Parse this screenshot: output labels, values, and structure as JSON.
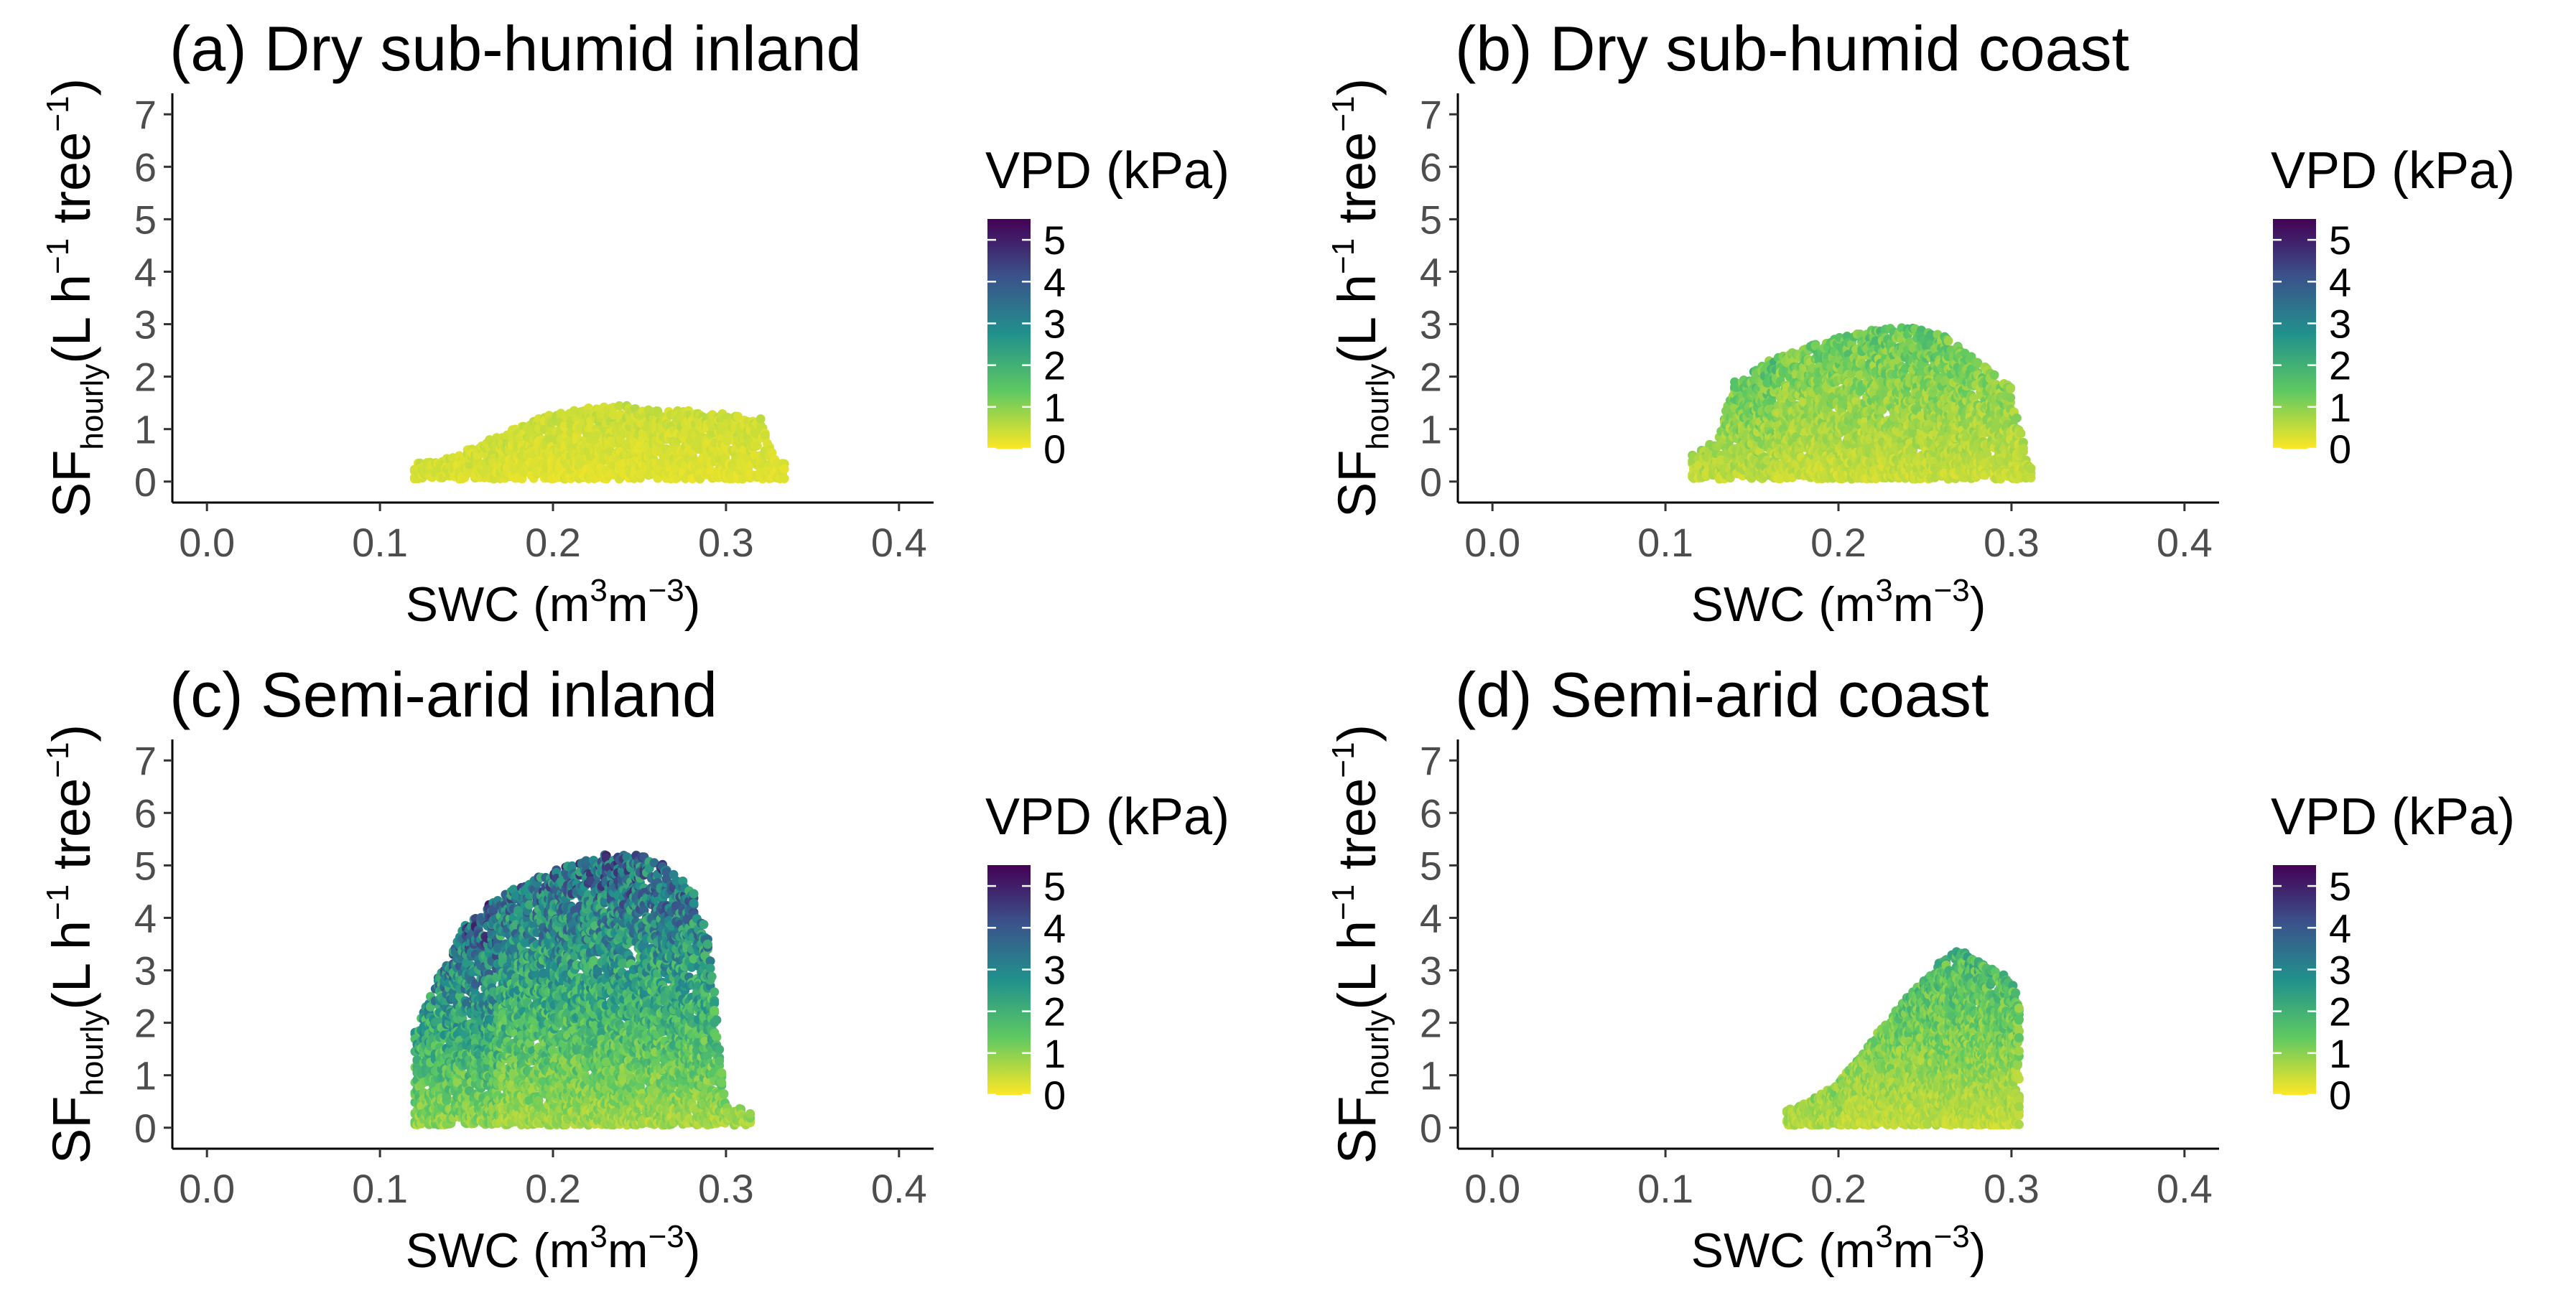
{
  "figure": {
    "colorbar_title": "VPD (kPa)",
    "colorbar_ticks": [
      "0",
      "1",
      "2",
      "3",
      "4",
      "5"
    ],
    "colorbar_stops": [
      "#fde725",
      "#5ec962",
      "#21918c",
      "#3b528b",
      "#440154"
    ],
    "x_label_main": "SWC (m",
    "x_label_sup1": "3",
    "x_label_mid": "m",
    "x_label_sup2": "−3",
    "x_label_end": ")",
    "y_label_main": "SF",
    "y_label_sub": "hourly",
    "y_label_mid": "(L h",
    "y_label_sup1": "−1",
    "y_label_tree": " tree",
    "y_label_sup2": "−1",
    "y_label_end": ")"
  },
  "chart_data": [
    {
      "type": "scatter",
      "title": "(a) Dry sub-humid inland",
      "xlabel": "SWC (m3m-3)",
      "ylabel": "SFhourly(L h-1 tree-1)",
      "color_variable": "VPD (kPa)",
      "color_range": [
        0,
        5.5
      ],
      "xlim": [
        -0.02,
        0.42
      ],
      "ylim": [
        -0.4,
        7.4
      ],
      "x_ticks": [
        0.0,
        0.1,
        0.2,
        0.3,
        0.4
      ],
      "x_tick_labels": [
        "0.0",
        "0.1",
        "0.2",
        "0.3",
        "0.4"
      ],
      "y_ticks": [
        0,
        1,
        2,
        3,
        4,
        5,
        6,
        7
      ],
      "y_tick_labels": [
        "0",
        "1",
        "2",
        "3",
        "4",
        "5",
        "6",
        "7"
      ],
      "envelope": [
        [
          0.12,
          0.35
        ],
        [
          0.14,
          0.45
        ],
        [
          0.16,
          0.75
        ],
        [
          0.18,
          1.05
        ],
        [
          0.2,
          1.3
        ],
        [
          0.22,
          1.4
        ],
        [
          0.24,
          1.45
        ],
        [
          0.26,
          1.4
        ],
        [
          0.28,
          1.35
        ],
        [
          0.3,
          1.3
        ],
        [
          0.32,
          1.2
        ],
        [
          0.33,
          0.35
        ]
      ],
      "x_extent": [
        0.12,
        0.335
      ],
      "peak_vpd": 1.6
    },
    {
      "type": "scatter",
      "title": "(b) Dry sub-humid coast",
      "xlabel": "SWC (m3m-3)",
      "ylabel": "SFhourly(L h-1 tree-1)",
      "color_variable": "VPD (kPa)",
      "color_range": [
        0,
        5.5
      ],
      "xlim": [
        -0.02,
        0.42
      ],
      "ylim": [
        -0.4,
        7.4
      ],
      "x_ticks": [
        0.0,
        0.1,
        0.2,
        0.3,
        0.4
      ],
      "x_tick_labels": [
        "0.0",
        "0.1",
        "0.2",
        "0.3",
        "0.4"
      ],
      "y_ticks": [
        0,
        1,
        2,
        3,
        4,
        5,
        6,
        7
      ],
      "y_tick_labels": [
        "0",
        "1",
        "2",
        "3",
        "4",
        "5",
        "6",
        "7"
      ],
      "envelope": [
        [
          0.115,
          0.5
        ],
        [
          0.13,
          0.8
        ],
        [
          0.14,
          1.9
        ],
        [
          0.16,
          2.3
        ],
        [
          0.18,
          2.55
        ],
        [
          0.2,
          2.75
        ],
        [
          0.22,
          2.9
        ],
        [
          0.24,
          2.95
        ],
        [
          0.26,
          2.8
        ],
        [
          0.28,
          2.3
        ],
        [
          0.3,
          1.8
        ],
        [
          0.31,
          0.3
        ]
      ],
      "x_extent": [
        0.115,
        0.312
      ],
      "peak_vpd": 3.0
    },
    {
      "type": "scatter",
      "title": "(c) Semi-arid inland",
      "xlabel": "SWC (m3m-3)",
      "ylabel": "SFhourly(L h-1 tree-1)",
      "color_variable": "VPD (kPa)",
      "color_range": [
        0,
        5.5
      ],
      "xlim": [
        -0.02,
        0.42
      ],
      "ylim": [
        -0.4,
        7.4
      ],
      "x_ticks": [
        0.0,
        0.1,
        0.2,
        0.3,
        0.4
      ],
      "x_tick_labels": [
        "0.0",
        "0.1",
        "0.2",
        "0.3",
        "0.4"
      ],
      "y_ticks": [
        0,
        1,
        2,
        3,
        4,
        5,
        6,
        7
      ],
      "y_tick_labels": [
        "0",
        "1",
        "2",
        "3",
        "4",
        "5",
        "6",
        "7"
      ],
      "envelope": [
        [
          0.12,
          1.8
        ],
        [
          0.13,
          2.6
        ],
        [
          0.14,
          3.3
        ],
        [
          0.15,
          3.9
        ],
        [
          0.16,
          4.2
        ],
        [
          0.18,
          4.6
        ],
        [
          0.2,
          4.9
        ],
        [
          0.22,
          5.1
        ],
        [
          0.24,
          5.3
        ],
        [
          0.26,
          5.1
        ],
        [
          0.28,
          4.6
        ],
        [
          0.29,
          3.6
        ],
        [
          0.3,
          0.5
        ],
        [
          0.315,
          0.25
        ]
      ],
      "x_extent": [
        0.12,
        0.315
      ],
      "peak_vpd": 5.2
    },
    {
      "type": "scatter",
      "title": "(d) Semi-arid coast",
      "xlabel": "SWC (m3m-3)",
      "ylabel": "SFhourly(L h-1 tree-1)",
      "color_variable": "VPD (kPa)",
      "color_range": [
        0,
        5.5
      ],
      "xlim": [
        -0.02,
        0.42
      ],
      "ylim": [
        -0.4,
        7.4
      ],
      "x_ticks": [
        0.0,
        0.1,
        0.2,
        0.3,
        0.4
      ],
      "x_tick_labels": [
        "0.0",
        "0.1",
        "0.2",
        "0.3",
        "0.4"
      ],
      "y_ticks": [
        0,
        1,
        2,
        3,
        4,
        5,
        6,
        7
      ],
      "y_tick_labels": [
        "0",
        "1",
        "2",
        "3",
        "4",
        "5",
        "6",
        "7"
      ],
      "envelope": [
        [
          0.17,
          0.35
        ],
        [
          0.18,
          0.45
        ],
        [
          0.2,
          0.85
        ],
        [
          0.22,
          1.7
        ],
        [
          0.24,
          2.5
        ],
        [
          0.26,
          3.2
        ],
        [
          0.27,
          3.4
        ],
        [
          0.28,
          3.2
        ],
        [
          0.29,
          3.0
        ],
        [
          0.3,
          2.9
        ],
        [
          0.305,
          2.2
        ]
      ],
      "x_extent": [
        0.17,
        0.305
      ],
      "peak_vpd": 3.6
    }
  ]
}
